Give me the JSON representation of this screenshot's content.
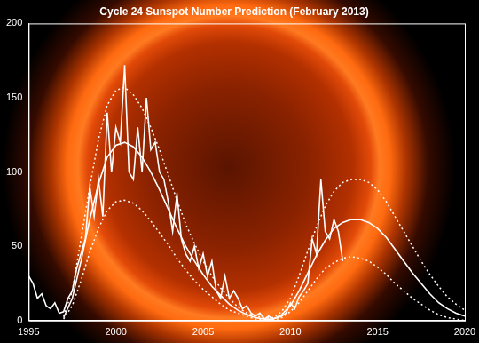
{
  "chart_data": {
    "type": "line",
    "title": "Cycle 24 Sunspot Number Prediction (February 2013)",
    "xlim": [
      1995,
      2020
    ],
    "xticks": [
      1995,
      2000,
      2005,
      2010,
      2015,
      2020
    ],
    "ylim": [
      0,
      200
    ],
    "yticks": [
      0,
      50,
      100,
      150,
      200
    ],
    "grid": false,
    "series": [
      {
        "color": "#ffffff",
        "line_style": "solid",
        "x": [
          1995,
          1995.25,
          1995.5,
          1995.75,
          1996,
          1996.25,
          1996.5,
          1996.75,
          1997,
          1997.25,
          1997.5,
          1997.75,
          1998,
          1998.25,
          1998.5,
          1998.75,
          1999,
          1999.25,
          1999.5,
          1999.75,
          2000,
          2000.25,
          2000.5,
          2000.75,
          2001,
          2001.25,
          2001.5,
          2001.75,
          2002,
          2002.25,
          2002.5,
          2002.75,
          2003,
          2003.25,
          2003.5,
          2003.75,
          2004,
          2004.25,
          2004.5,
          2004.75,
          2005,
          2005.25,
          2005.5,
          2005.75,
          2006,
          2006.25,
          2006.5,
          2006.75,
          2007,
          2007.25,
          2007.5,
          2007.75,
          2008,
          2008.25,
          2008.5,
          2008.75,
          2009,
          2009.25,
          2009.5,
          2009.75,
          2010,
          2010.25,
          2010.5,
          2010.75,
          2011,
          2011.25,
          2011.5,
          2011.75,
          2012,
          2012.25,
          2012.5,
          2012.75,
          2013
        ],
        "values": [
          30,
          25,
          15,
          18,
          10,
          8,
          12,
          5,
          6,
          15,
          20,
          35,
          45,
          55,
          90,
          70,
          95,
          70,
          140,
          100,
          130,
          120,
          172,
          100,
          95,
          130,
          100,
          150,
          115,
          120,
          100,
          95,
          80,
          60,
          85,
          55,
          45,
          40,
          50,
          35,
          45,
          30,
          40,
          20,
          15,
          30,
          15,
          20,
          15,
          8,
          10,
          5,
          3,
          5,
          1,
          3,
          1,
          2,
          3,
          5,
          12,
          8,
          16,
          20,
          25,
          55,
          45,
          95,
          60,
          55,
          68,
          60,
          40
        ]
      },
      {
        "color": "#ffffff",
        "line_style": "solid",
        "x": [
          1997,
          1997.5,
          1998,
          1998.5,
          1999,
          1999.5,
          2000,
          2000.5,
          2001,
          2001.5,
          2002,
          2002.5,
          2003,
          2003.5,
          2004,
          2004.5,
          2005,
          2005.5,
          2006,
          2006.5,
          2007,
          2007.5,
          2008,
          2008.5,
          2009,
          2009.5,
          2010,
          2010.5,
          2011,
          2011.5,
          2012,
          2012.5,
          2013,
          2013.5,
          2014,
          2014.5,
          2015,
          2015.5,
          2016,
          2016.5,
          2017,
          2017.5,
          2018,
          2018.5,
          2019,
          2019.5,
          2020
        ],
        "values": [
          2,
          15,
          40,
          68,
          92,
          110,
          118,
          120,
          117,
          110,
          100,
          88,
          75,
          62,
          50,
          40,
          31,
          23,
          17,
          11,
          7,
          4,
          2,
          1,
          1,
          4,
          10,
          20,
          32,
          44,
          54,
          62,
          66,
          68,
          68,
          66,
          62,
          56,
          48,
          40,
          32,
          25,
          18,
          12,
          8,
          5,
          3
        ]
      },
      {
        "color": "#ffffff",
        "line_style": "dotted",
        "x": [
          1997,
          1997.5,
          1998,
          1998.5,
          1999,
          1999.5,
          2000,
          2000.5,
          2001,
          2001.5,
          2002,
          2002.5,
          2003,
          2003.5,
          2004,
          2004.5,
          2005,
          2005.5,
          2006,
          2006.5,
          2007,
          2007.5,
          2008,
          2008.5,
          2009,
          2009.5,
          2010,
          2010.5,
          2011,
          2011.5,
          2012,
          2012.5,
          2013,
          2013.5,
          2014,
          2014.5,
          2015,
          2015.5,
          2016,
          2016.5,
          2017,
          2017.5,
          2018,
          2018.5,
          2019,
          2019.5,
          2020
        ],
        "values": [
          3,
          20,
          55,
          90,
          122,
          145,
          155,
          157,
          152,
          143,
          130,
          115,
          98,
          81,
          65,
          52,
          40,
          30,
          22,
          15,
          9,
          5,
          3,
          2,
          2,
          6,
          15,
          30,
          47,
          63,
          77,
          87,
          93,
          95,
          95,
          93,
          88,
          80,
          70,
          60,
          50,
          40,
          31,
          23,
          16,
          11,
          7
        ]
      },
      {
        "color": "#ffffff",
        "line_style": "dotted",
        "x": [
          1997,
          1997.5,
          1998,
          1998.5,
          1999,
          1999.5,
          2000,
          2000.5,
          2001,
          2001.5,
          2002,
          2002.5,
          2003,
          2003.5,
          2004,
          2004.5,
          2005,
          2005.5,
          2006,
          2006.5,
          2007,
          2007.5,
          2008,
          2008.5,
          2009,
          2009.5,
          2010,
          2010.5,
          2011,
          2011.5,
          2012,
          2012.5,
          2013,
          2013.5,
          2014,
          2014.5,
          2015,
          2015.5,
          2016,
          2016.5,
          2017,
          2017.5,
          2018,
          2018.5,
          2019,
          2019.5,
          2020
        ],
        "values": [
          1,
          10,
          27,
          46,
          62,
          74,
          80,
          81,
          79,
          74,
          67,
          59,
          51,
          42,
          34,
          27,
          21,
          16,
          11,
          7,
          5,
          3,
          1,
          1,
          0,
          2,
          6,
          12,
          20,
          28,
          35,
          39,
          42,
          43,
          42,
          40,
          36,
          31,
          25,
          20,
          15,
          11,
          7,
          4,
          2,
          1,
          0
        ]
      }
    ]
  }
}
